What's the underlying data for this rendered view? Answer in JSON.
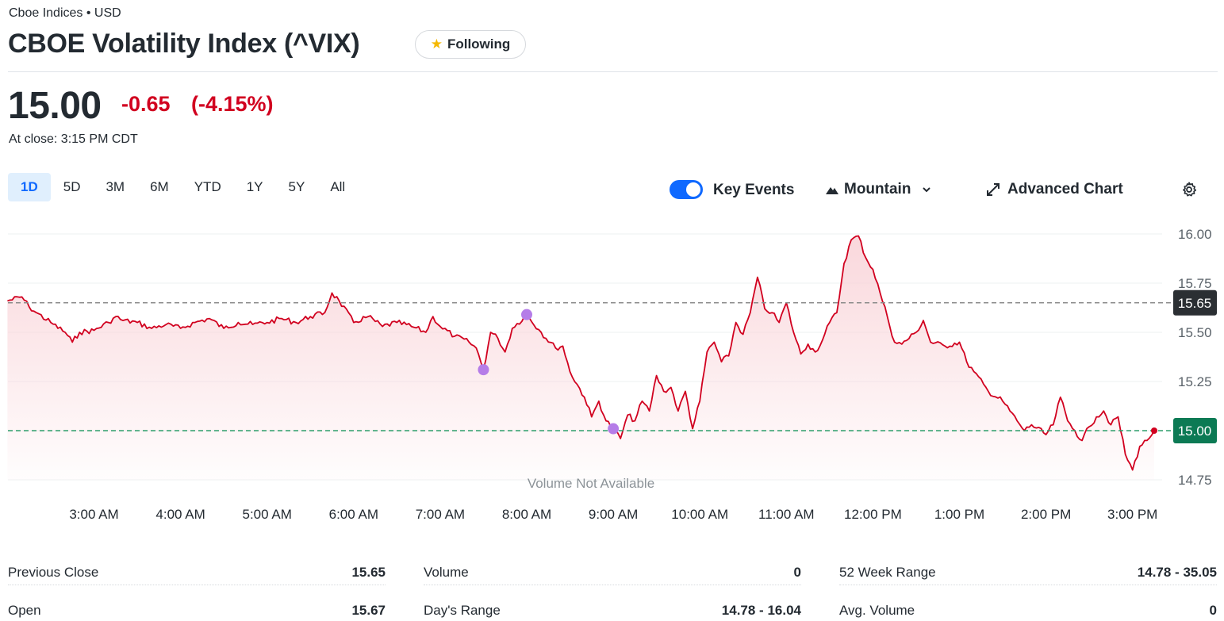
{
  "header": {
    "source": "Cboe Indices • USD",
    "title": "CBOE Volatility Index (^VIX)",
    "follow_label": "Following"
  },
  "quote": {
    "price": "15.00",
    "change": "-0.65",
    "change_pct": "(-4.15%)",
    "close_time": "At close: 3:15 PM CDT"
  },
  "range_tabs": [
    "1D",
    "5D",
    "3M",
    "6M",
    "YTD",
    "1Y",
    "5Y",
    "All"
  ],
  "active_range": "1D",
  "toolbar": {
    "key_events_label": "Key Events",
    "key_events_on": true,
    "chart_type_label": "Mountain",
    "advanced_label": "Advanced Chart"
  },
  "colors": {
    "line": "#d1001f",
    "fill": "#f9d3d8",
    "prev_close_line": "#8c8c8c",
    "current_line": "#2e9e6b",
    "prev_close_badge": "#2b2f33",
    "current_badge": "#0c7a54",
    "event_dot": "#b57de8",
    "accent": "#0f69ff"
  },
  "chart_data": {
    "type": "area",
    "title": "",
    "xlabel": "",
    "ylabel": "",
    "ylim": [
      14.72,
      16.04
    ],
    "y_ticks": [
      "16.00",
      "15.75",
      "15.50",
      "15.25",
      "15.00",
      "14.75"
    ],
    "x_ticks": [
      "3:00 AM",
      "4:00 AM",
      "5:00 AM",
      "6:00 AM",
      "7:00 AM",
      "8:00 AM",
      "9:00 AM",
      "10:00 AM",
      "11:00 AM",
      "12:00 PM",
      "1:00 PM",
      "2:00 PM",
      "3:00 PM"
    ],
    "x_start": "2:00 AM",
    "x_end": "3:15 PM",
    "reference_lines": [
      {
        "label": "15.65",
        "value": 15.65,
        "kind": "previous_close"
      },
      {
        "label": "15.00",
        "value": 15.0,
        "kind": "current"
      }
    ],
    "volume_note": "Volume Not Available",
    "events": [
      {
        "time": "7:30 AM",
        "value": 15.31
      },
      {
        "time": "8:00 AM",
        "value": 15.59
      },
      {
        "time": "9:00 AM",
        "value": 15.01
      }
    ],
    "series": [
      {
        "points": [
          [
            "2:00 AM",
            15.66
          ],
          [
            "2:10 AM",
            15.68
          ],
          [
            "2:15 AM",
            15.63
          ],
          [
            "2:20 AM",
            15.6
          ],
          [
            "2:30 AM",
            15.55
          ],
          [
            "2:40 AM",
            15.5
          ],
          [
            "2:45 AM",
            15.45
          ],
          [
            "2:50 AM",
            15.5
          ],
          [
            "3:00 AM",
            15.51
          ],
          [
            "3:10 AM",
            15.55
          ],
          [
            "3:15 AM",
            15.58
          ],
          [
            "3:20 AM",
            15.56
          ],
          [
            "3:30 AM",
            15.55
          ],
          [
            "3:40 AM",
            15.52
          ],
          [
            "3:50 AM",
            15.54
          ],
          [
            "4:00 AM",
            15.52
          ],
          [
            "4:10 AM",
            15.55
          ],
          [
            "4:20 AM",
            15.57
          ],
          [
            "4:30 AM",
            15.52
          ],
          [
            "4:40 AM",
            15.55
          ],
          [
            "4:50 AM",
            15.54
          ],
          [
            "5:00 AM",
            15.55
          ],
          [
            "5:10 AM",
            15.57
          ],
          [
            "5:20 AM",
            15.55
          ],
          [
            "5:30 AM",
            15.58
          ],
          [
            "5:40 AM",
            15.6
          ],
          [
            "5:45 AM",
            15.7
          ],
          [
            "5:50 AM",
            15.66
          ],
          [
            "6:00 AM",
            15.55
          ],
          [
            "6:10 AM",
            15.58
          ],
          [
            "6:20 AM",
            15.53
          ],
          [
            "6:30 AM",
            15.55
          ],
          [
            "6:40 AM",
            15.53
          ],
          [
            "6:50 AM",
            15.5
          ],
          [
            "6:55 AM",
            15.58
          ],
          [
            "7:00 AM",
            15.53
          ],
          [
            "7:10 AM",
            15.48
          ],
          [
            "7:20 AM",
            15.45
          ],
          [
            "7:25 AM",
            15.42
          ],
          [
            "7:30 AM",
            15.31
          ],
          [
            "7:35 AM",
            15.5
          ],
          [
            "7:40 AM",
            15.47
          ],
          [
            "7:45 AM",
            15.4
          ],
          [
            "7:50 AM",
            15.52
          ],
          [
            "8:00 AM",
            15.59
          ],
          [
            "8:10 AM",
            15.5
          ],
          [
            "8:20 AM",
            15.42
          ],
          [
            "8:25 AM",
            15.43
          ],
          [
            "8:30 AM",
            15.3
          ],
          [
            "8:40 AM",
            15.17
          ],
          [
            "8:45 AM",
            15.07
          ],
          [
            "8:50 AM",
            15.15
          ],
          [
            "8:55 AM",
            15.05
          ],
          [
            "9:00 AM",
            15.01
          ],
          [
            "9:05 AM",
            14.96
          ],
          [
            "9:10 AM",
            15.08
          ],
          [
            "9:15 AM",
            15.05
          ],
          [
            "9:20 AM",
            15.15
          ],
          [
            "9:25 AM",
            15.1
          ],
          [
            "9:30 AM",
            15.28
          ],
          [
            "9:35 AM",
            15.2
          ],
          [
            "9:40 AM",
            15.22
          ],
          [
            "9:45 AM",
            15.1
          ],
          [
            "9:50 AM",
            15.2
          ],
          [
            "9:55 AM",
            15.01
          ],
          [
            "10:00 AM",
            15.15
          ],
          [
            "10:05 AM",
            15.4
          ],
          [
            "10:10 AM",
            15.45
          ],
          [
            "10:15 AM",
            15.35
          ],
          [
            "10:20 AM",
            15.38
          ],
          [
            "10:25 AM",
            15.55
          ],
          [
            "10:30 AM",
            15.49
          ],
          [
            "10:35 AM",
            15.6
          ],
          [
            "10:40 AM",
            15.78
          ],
          [
            "10:45 AM",
            15.62
          ],
          [
            "10:50 AM",
            15.6
          ],
          [
            "10:55 AM",
            15.55
          ],
          [
            "11:00 AM",
            15.65
          ],
          [
            "11:05 AM",
            15.5
          ],
          [
            "11:10 AM",
            15.39
          ],
          [
            "11:15 AM",
            15.44
          ],
          [
            "11:20 AM",
            15.4
          ],
          [
            "11:25 AM",
            15.46
          ],
          [
            "11:30 AM",
            15.55
          ],
          [
            "11:35 AM",
            15.6
          ],
          [
            "11:40 AM",
            15.85
          ],
          [
            "11:45 AM",
            15.97
          ],
          [
            "11:50 AM",
            15.99
          ],
          [
            "11:55 AM",
            15.88
          ],
          [
            "12:00 PM",
            15.82
          ],
          [
            "12:05 PM",
            15.7
          ],
          [
            "12:10 PM",
            15.58
          ],
          [
            "12:15 PM",
            15.45
          ],
          [
            "12:20 PM",
            15.44
          ],
          [
            "12:30 PM",
            15.5
          ],
          [
            "12:35 PM",
            15.56
          ],
          [
            "12:40 PM",
            15.45
          ],
          [
            "12:50 PM",
            15.43
          ],
          [
            "1:00 PM",
            15.45
          ],
          [
            "1:05 PM",
            15.35
          ],
          [
            "1:10 PM",
            15.3
          ],
          [
            "1:20 PM",
            15.2
          ],
          [
            "1:30 PM",
            15.15
          ],
          [
            "1:40 PM",
            15.05
          ],
          [
            "1:45 PM",
            15.0
          ],
          [
            "1:50 PM",
            15.03
          ],
          [
            "2:00 PM",
            14.98
          ],
          [
            "2:05 PM",
            15.03
          ],
          [
            "2:10 PM",
            15.17
          ],
          [
            "2:15 PM",
            15.05
          ],
          [
            "2:20 PM",
            15.0
          ],
          [
            "2:25 PM",
            14.95
          ],
          [
            "2:30 PM",
            15.02
          ],
          [
            "2:35 PM",
            15.07
          ],
          [
            "2:40 PM",
            15.1
          ],
          [
            "2:45 PM",
            15.03
          ],
          [
            "2:50 PM",
            15.07
          ],
          [
            "2:55 PM",
            14.88
          ],
          [
            "3:00 PM",
            14.8
          ],
          [
            "3:05 PM",
            14.92
          ],
          [
            "3:10 PM",
            14.95
          ],
          [
            "3:15 PM",
            15.0
          ]
        ]
      }
    ]
  },
  "stats": [
    {
      "label": "Previous Close",
      "value": "15.65"
    },
    {
      "label": "Volume",
      "value": "0"
    },
    {
      "label": "52 Week Range",
      "value": "14.78 - 35.05"
    },
    {
      "label": "Open",
      "value": "15.67"
    },
    {
      "label": "Day's Range",
      "value": "14.78 - 16.04"
    },
    {
      "label": "Avg. Volume",
      "value": "0"
    }
  ]
}
